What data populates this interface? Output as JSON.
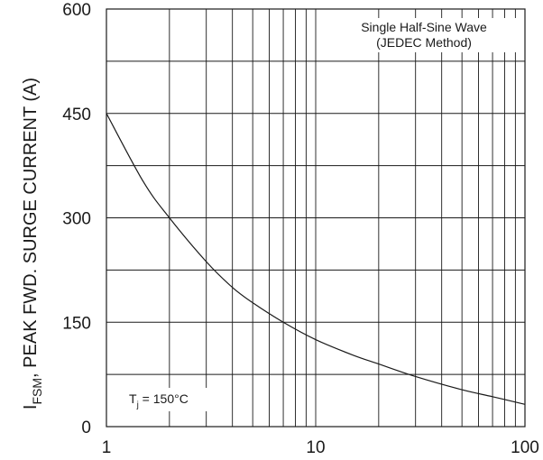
{
  "chart_data": {
    "type": "line",
    "xscale": "log",
    "xlim": [
      1,
      100
    ],
    "ylim": [
      0,
      600
    ],
    "grid": true,
    "x_ticks": [
      "1",
      "10",
      "100"
    ],
    "y_ticks": [
      "0",
      "150",
      "300",
      "450",
      "600"
    ],
    "ylabel": {
      "prefix": "I",
      "sub": "FSM",
      "rest": ", PEAK FWD. SURGE CURRENT (A)"
    },
    "xlabel": "",
    "annotations": {
      "wave_line1": "Single Half-Sine Wave",
      "wave_line2": "(JEDEC Method)",
      "tj_prefix": "T",
      "tj_sub": "j",
      "tj_rest": " = 150°C"
    },
    "series": [
      {
        "x": [
          1,
          1.5,
          2,
          3,
          4,
          5,
          7,
          10,
          15,
          20,
          30,
          50,
          70,
          100
        ],
        "y": [
          450,
          352,
          300,
          237,
          200,
          178,
          150,
          125,
          103,
          90,
          72,
          53,
          43,
          32
        ]
      }
    ]
  }
}
